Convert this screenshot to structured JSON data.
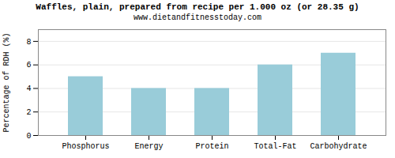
{
  "chart_data": {
    "type": "bar",
    "title": "Waffles, plain, prepared from recipe per 1.000 oz (or 28.35 g)",
    "subtitle": "www.dietandfitnesstoday.com",
    "categories": [
      "Phosphorus",
      "Energy",
      "Protein",
      "Total-Fat",
      "Carbohydrate"
    ],
    "values": [
      5.0,
      4.0,
      4.0,
      6.0,
      7.0
    ],
    "color": "#99ccd9",
    "ylabel": "Percentage of RDH (%)",
    "ylim": [
      0,
      9
    ],
    "yticks": [
      0,
      2,
      4,
      6,
      8
    ],
    "grid": true
  }
}
